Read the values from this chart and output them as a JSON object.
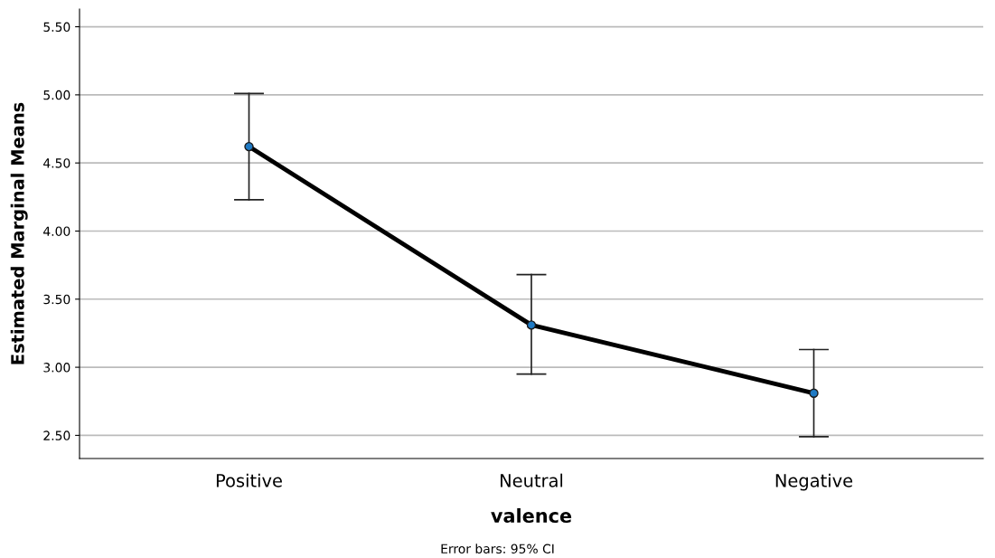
{
  "chart_data": {
    "type": "line",
    "xlabel": "valence",
    "ylabel": "Estimated Marginal Means",
    "categories": [
      "Positive",
      "Neutral",
      "Negative"
    ],
    "series": [
      {
        "color": "#000000",
        "values": [
          4.62,
          3.31,
          2.81
        ],
        "errors": [
          [
            4.23,
            5.01
          ],
          [
            2.95,
            3.68
          ],
          [
            2.49,
            3.13
          ]
        ]
      }
    ],
    "marker": "circle",
    "line_style": "solid",
    "ylim": [
      2.33,
      5.63
    ],
    "yticks": [
      {
        "value": 2.5,
        "label": "2.50"
      },
      {
        "value": 3.0,
        "label": "3.00"
      },
      {
        "value": 3.5,
        "label": "3.50"
      },
      {
        "value": 4.0,
        "label": "4.00"
      },
      {
        "value": 4.5,
        "label": "4.50"
      },
      {
        "value": 5.0,
        "label": "5.00"
      },
      {
        "value": 5.5,
        "label": "5.50"
      }
    ],
    "grid": "y",
    "annotations": [
      "Error bars: 95% CI"
    ]
  }
}
